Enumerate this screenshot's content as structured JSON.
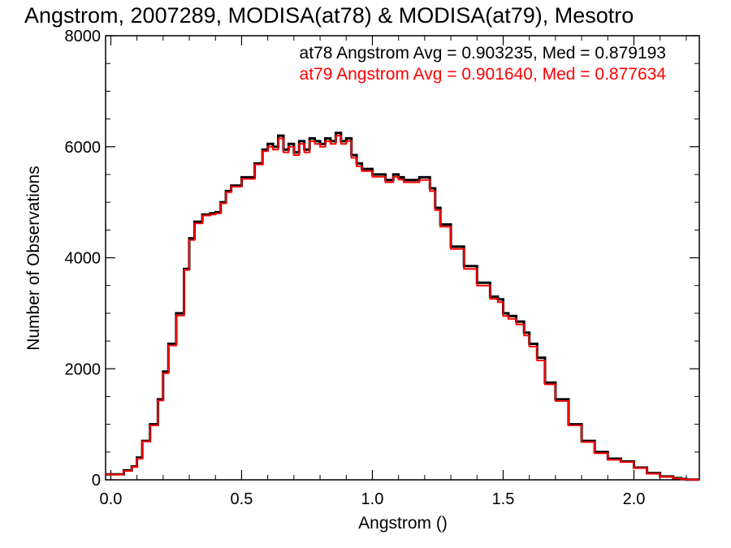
{
  "chart_data": {
    "type": "line",
    "title": "Angstrom, 2007289, MODISA(at78) & MODISA(at79), Mesotro",
    "xlabel": "Angstrom ()",
    "ylabel": "Number of Observations",
    "xlim": [
      -0.02,
      2.25
    ],
    "ylim": [
      0,
      8000
    ],
    "x_ticks": [
      {
        "value": 0.0,
        "label": "0.0"
      },
      {
        "value": 0.5,
        "label": "0.5"
      },
      {
        "value": 1.0,
        "label": "1.0"
      },
      {
        "value": 1.5,
        "label": "1.5"
      },
      {
        "value": 2.0,
        "label": "2.0"
      }
    ],
    "y_ticks": [
      {
        "value": 0,
        "label": "0"
      },
      {
        "value": 2000,
        "label": "2000"
      },
      {
        "value": 4000,
        "label": "4000"
      },
      {
        "value": 6000,
        "label": "6000"
      },
      {
        "value": 8000,
        "label": "8000"
      }
    ],
    "grid": false,
    "colors": {
      "at78": "#000000",
      "at79": "#ff0000"
    },
    "annotations": [
      {
        "text": "at78 Angstrom Avg = 0.903235, Med = 0.879193",
        "color": "#000000"
      },
      {
        "text": "at79 Angstrom Avg = 0.901640, Med = 0.877634",
        "color": "#ff0000"
      }
    ],
    "x": [
      -0.02,
      0.0,
      0.05,
      0.08,
      0.1,
      0.12,
      0.15,
      0.18,
      0.2,
      0.22,
      0.25,
      0.28,
      0.3,
      0.32,
      0.35,
      0.38,
      0.4,
      0.42,
      0.44,
      0.46,
      0.5,
      0.55,
      0.58,
      0.6,
      0.62,
      0.64,
      0.66,
      0.68,
      0.7,
      0.72,
      0.74,
      0.76,
      0.78,
      0.8,
      0.82,
      0.84,
      0.86,
      0.88,
      0.9,
      0.92,
      0.94,
      0.96,
      1.0,
      1.05,
      1.08,
      1.1,
      1.12,
      1.15,
      1.18,
      1.2,
      1.22,
      1.24,
      1.26,
      1.3,
      1.35,
      1.4,
      1.45,
      1.48,
      1.5,
      1.52,
      1.55,
      1.58,
      1.6,
      1.63,
      1.66,
      1.7,
      1.75,
      1.8,
      1.85,
      1.9,
      1.95,
      2.0,
      2.05,
      2.1,
      2.15,
      2.18,
      2.2
    ],
    "series": [
      {
        "name": "at78",
        "values": [
          100,
          100,
          170,
          240,
          400,
          700,
          1000,
          1450,
          1950,
          2450,
          3000,
          3800,
          4350,
          4650,
          4780,
          4800,
          4820,
          5000,
          5200,
          5300,
          5450,
          5700,
          5950,
          6050,
          6000,
          6200,
          5950,
          6050,
          5900,
          6100,
          5950,
          6150,
          6100,
          6050,
          6150,
          6100,
          6250,
          6100,
          6150,
          5850,
          5700,
          5600,
          5500,
          5400,
          5500,
          5450,
          5400,
          5400,
          5450,
          5450,
          5250,
          4900,
          4600,
          4200,
          3850,
          3550,
          3300,
          3250,
          3000,
          2950,
          2850,
          2650,
          2450,
          2200,
          1750,
          1450,
          1000,
          700,
          500,
          380,
          330,
          220,
          120,
          60,
          30,
          15,
          5
        ]
      },
      {
        "name": "at79",
        "values": [
          100,
          95,
          160,
          230,
          380,
          690,
          980,
          1430,
          1920,
          2420,
          2960,
          3780,
          4320,
          4620,
          4760,
          4780,
          4800,
          4980,
          5180,
          5280,
          5420,
          5680,
          5920,
          6000,
          5950,
          6150,
          5900,
          6000,
          5850,
          6050,
          5900,
          6100,
          6050,
          6000,
          6100,
          6050,
          6200,
          6050,
          6100,
          5800,
          5650,
          5560,
          5460,
          5360,
          5460,
          5410,
          5360,
          5360,
          5400,
          5400,
          5200,
          4860,
          4560,
          4160,
          3800,
          3500,
          3260,
          3200,
          2950,
          2900,
          2800,
          2600,
          2400,
          2150,
          1720,
          1420,
          980,
          680,
          480,
          360,
          320,
          210,
          110,
          55,
          25,
          12,
          4
        ]
      }
    ]
  }
}
